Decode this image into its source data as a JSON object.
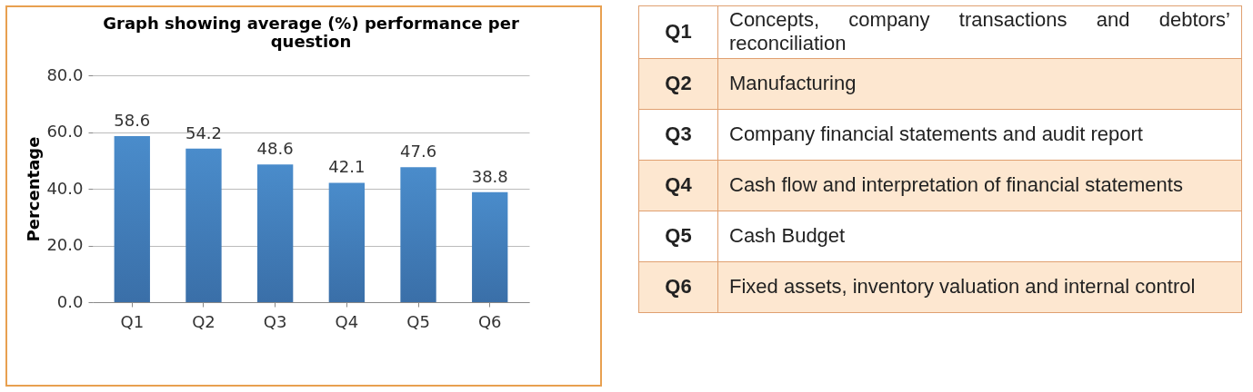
{
  "chart_data": [
    {
      "type": "bar",
      "title": "Graph showing average (%) performance per question",
      "ylabel": "Percentage",
      "categories": [
        "Q1",
        "Q2",
        "Q3",
        "Q4",
        "Q5",
        "Q6"
      ],
      "values": [
        58.6,
        54.2,
        48.6,
        42.1,
        47.6,
        38.8
      ],
      "color": "#4a8ccb",
      "ylim": [
        0,
        80
      ],
      "yticks": [
        {
          "value": 0,
          "label": "0.0"
        },
        {
          "value": 20,
          "label": "20.0"
        },
        {
          "value": 40,
          "label": "40.0"
        },
        {
          "value": 60,
          "label": "60.0"
        },
        {
          "value": 80,
          "label": "80.0"
        }
      ],
      "grid": "y",
      "data_labels": true
    },
    {
      "type": "other",
      "annotations": [
        "Q1",
        "Concepts, company transactions and debtors’ reconciliation",
        "Q2",
        "Manufacturing",
        "Q3",
        "Company financial statements and audit report",
        "Q4",
        "Cash flow and interpretation of financial statements",
        "Q5",
        "Cash Budget",
        "Q6",
        "Fixed assets, inventory valuation and internal control"
      ]
    }
  ]
}
